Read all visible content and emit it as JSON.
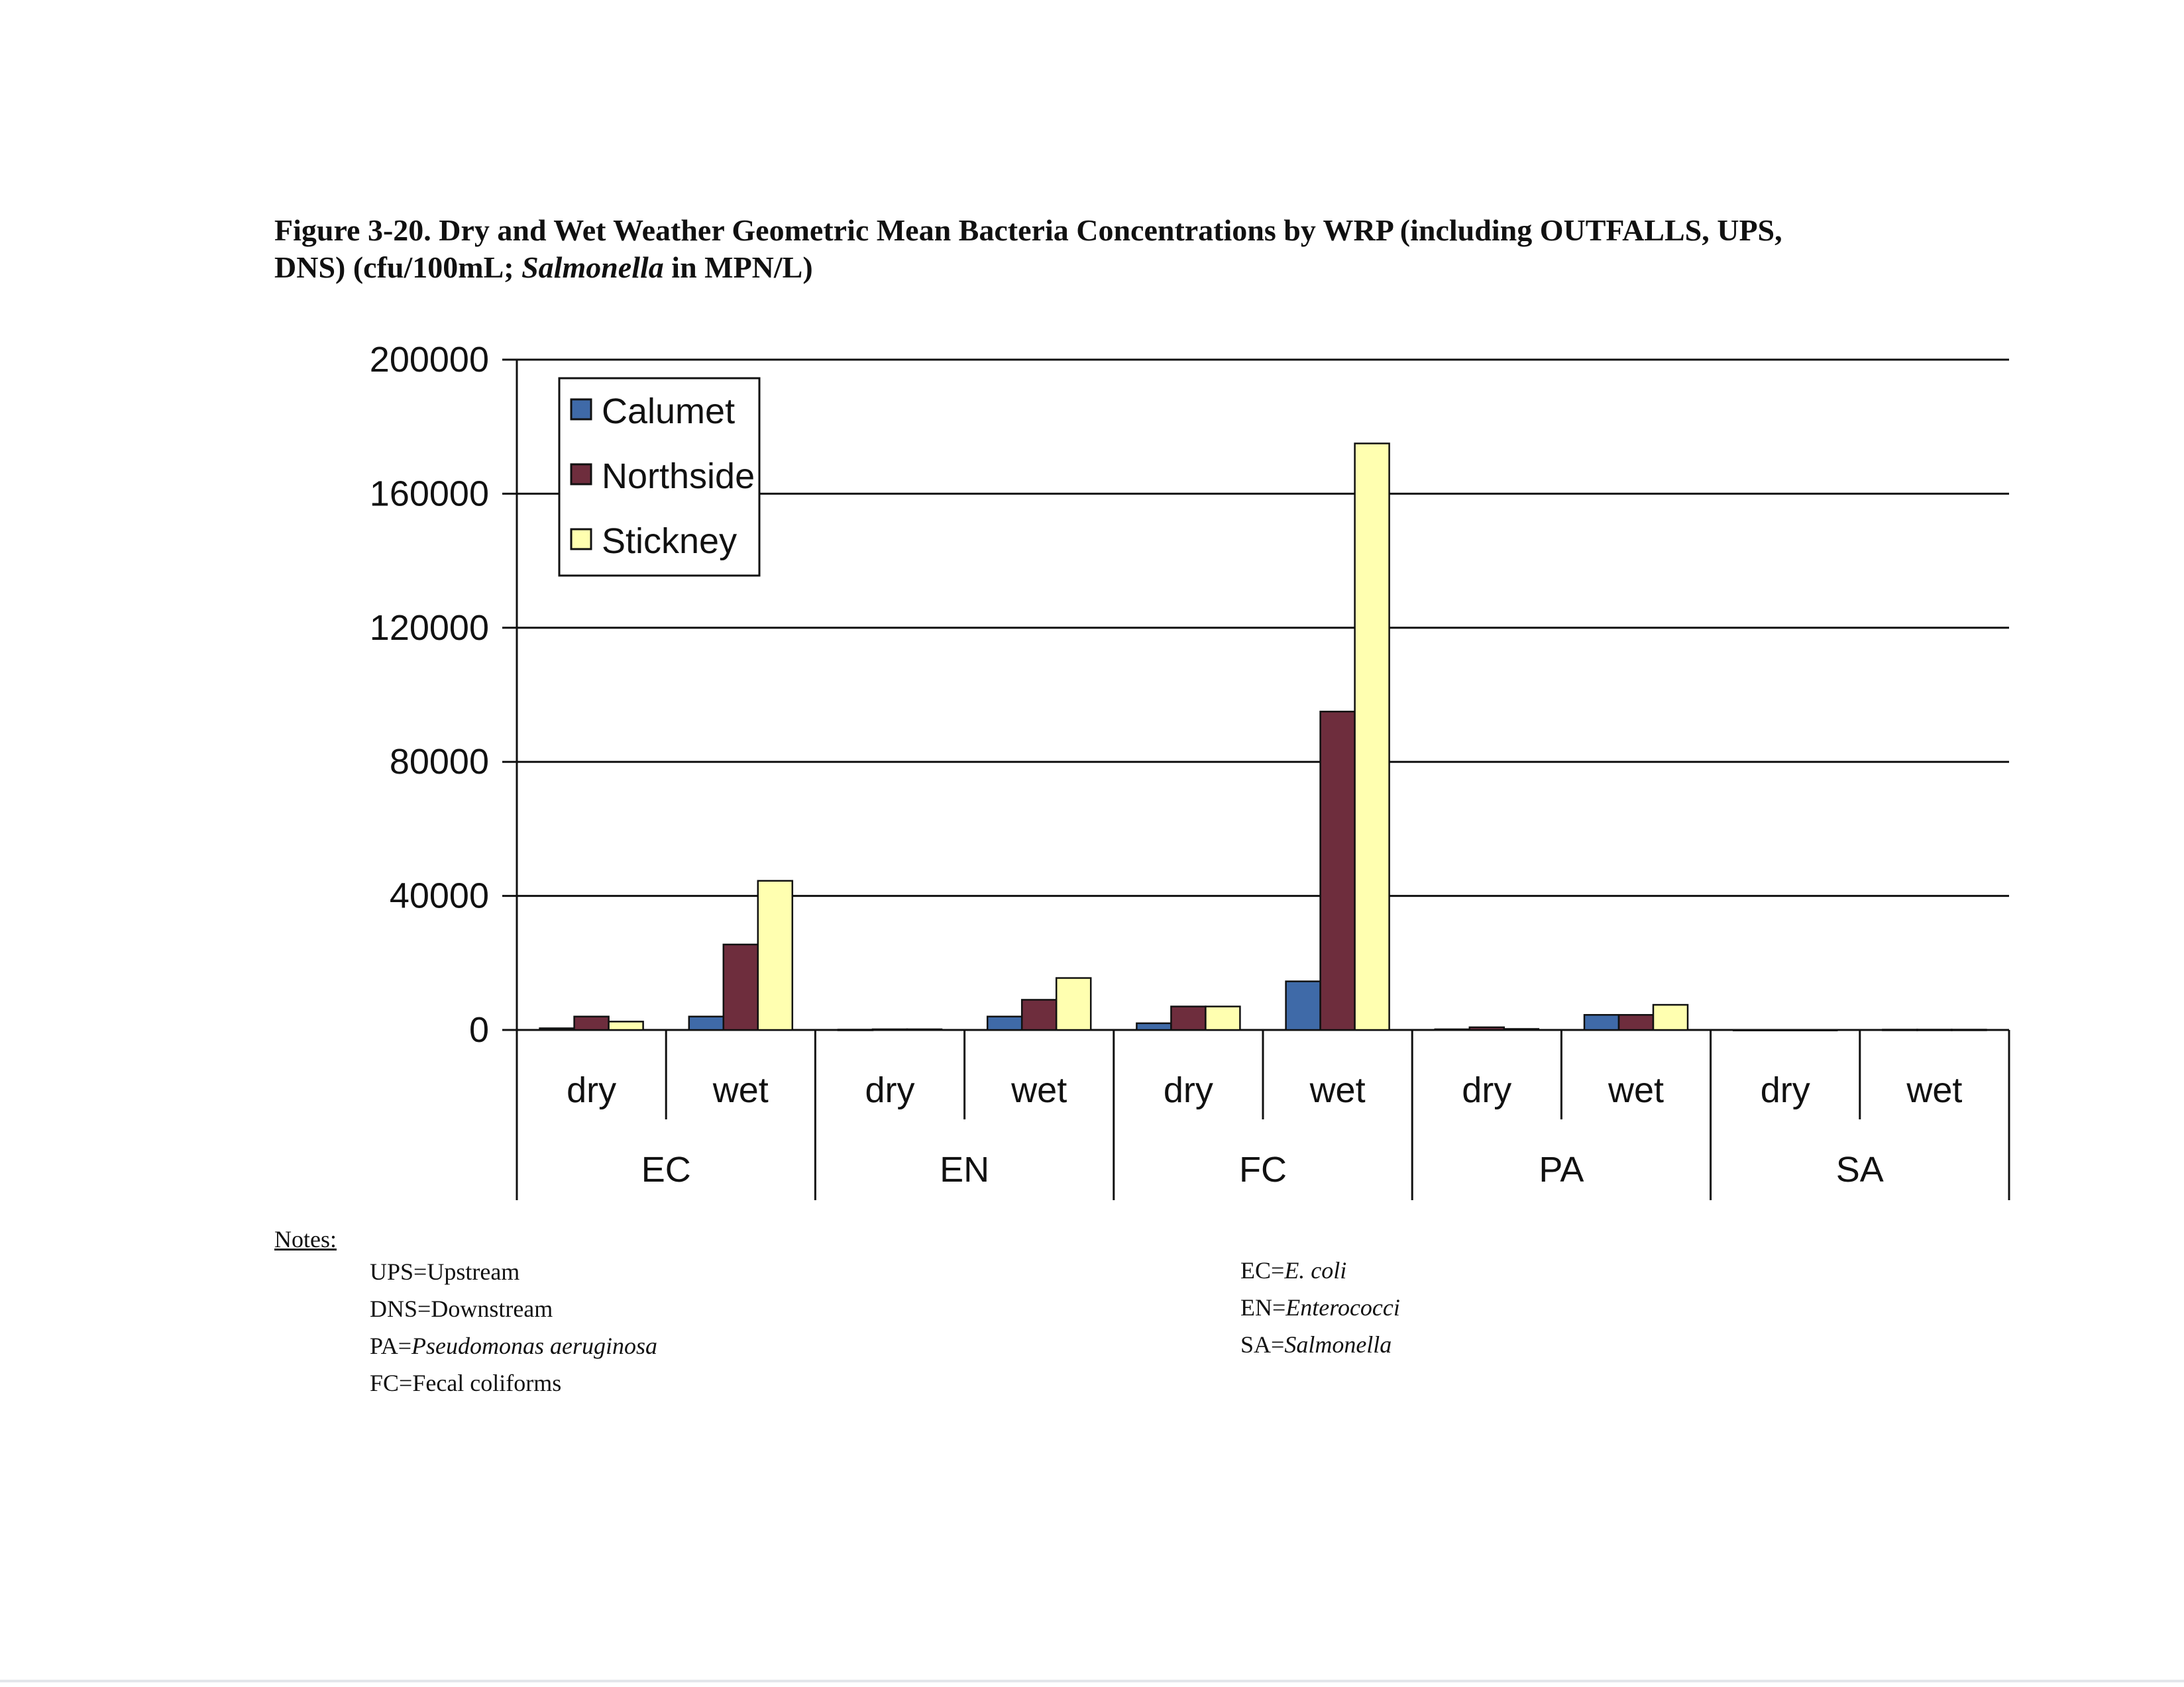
{
  "caption": {
    "line1": "Figure 3-20.  Dry and Wet Weather Geometric Mean Bacteria Concentrations by WRP (including OUTFALLS, UPS,",
    "line2_a": "DNS) (cfu/100mL; ",
    "line2_b": "Salmonella",
    "line2_c": " in MPN/L)"
  },
  "chart_data": {
    "type": "bar",
    "groups": [
      "EC",
      "EN",
      "FC",
      "PA",
      "SA"
    ],
    "conditions": [
      "dry",
      "wet"
    ],
    "categories": [
      "EC dry",
      "EC wet",
      "EN dry",
      "EN wet",
      "FC dry",
      "FC wet",
      "PA dry",
      "PA wet",
      "SA dry",
      "SA wet"
    ],
    "series": [
      {
        "name": "Calumet",
        "color": "#3f6aa8",
        "values": [
          500,
          4000,
          100,
          4000,
          2000,
          14500,
          200,
          4500,
          50,
          100
        ]
      },
      {
        "name": "Northside",
        "color": "#6e2d3d",
        "values": [
          4000,
          25500,
          200,
          9000,
          7000,
          95000,
          800,
          4500,
          50,
          100
        ]
      },
      {
        "name": "Stickney",
        "color": "#ffffb0",
        "values": [
          2500,
          44500,
          200,
          15500,
          7000,
          175000,
          300,
          7500,
          50,
          100
        ]
      }
    ],
    "ylim": [
      0,
      200000
    ],
    "yticks": [
      "200000",
      "160000",
      "120000",
      "80000",
      "40000",
      "0"
    ],
    "grid": true,
    "legend_position": "top-left"
  },
  "notes": {
    "title": "Notes:",
    "left": [
      {
        "prefix": "UPS=",
        "term": "Upstream",
        "italic": false
      },
      {
        "prefix": "DNS=",
        "term": "Downstream",
        "italic": false
      },
      {
        "prefix": "PA=",
        "term": "Pseudomonas aeruginosa",
        "italic": true
      },
      {
        "prefix": "FC=",
        "term": "Fecal coliforms",
        "italic": false
      }
    ],
    "right": [
      {
        "prefix": "EC=",
        "term": "E. coli",
        "italic": true
      },
      {
        "prefix": "EN=",
        "term": "Enterococci",
        "italic": true
      },
      {
        "prefix": "SA=",
        "term": "Salmonella",
        "italic": true
      }
    ]
  }
}
